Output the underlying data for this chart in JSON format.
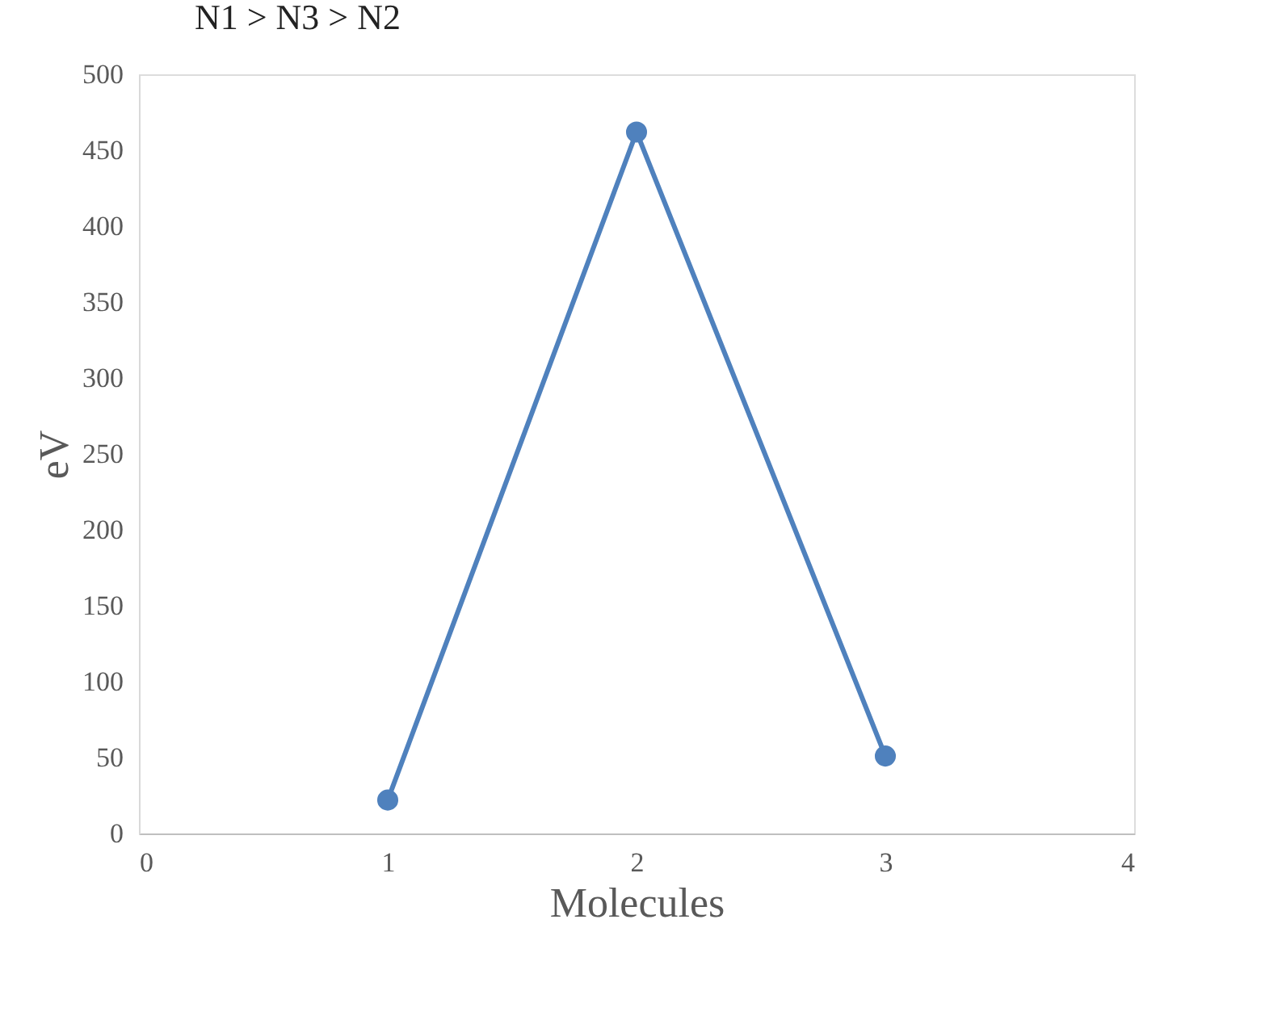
{
  "chart_data": {
    "type": "line",
    "title": "N1 > N3 > N2",
    "xlabel": "Molecules",
    "ylabel": "eV",
    "x": [
      1,
      2,
      3
    ],
    "series": [
      {
        "color": "#4f81bd",
        "values": [
          22,
          462,
          51
        ]
      }
    ],
    "xlim": [
      0,
      4
    ],
    "xticks": [
      0,
      1,
      2,
      3,
      4
    ],
    "ylim": [
      0,
      500
    ],
    "yticks": [
      0,
      50,
      100,
      150,
      200,
      250,
      300,
      350,
      400,
      450,
      500
    ],
    "grid": false,
    "marker": "circle",
    "line_style": "solid"
  }
}
